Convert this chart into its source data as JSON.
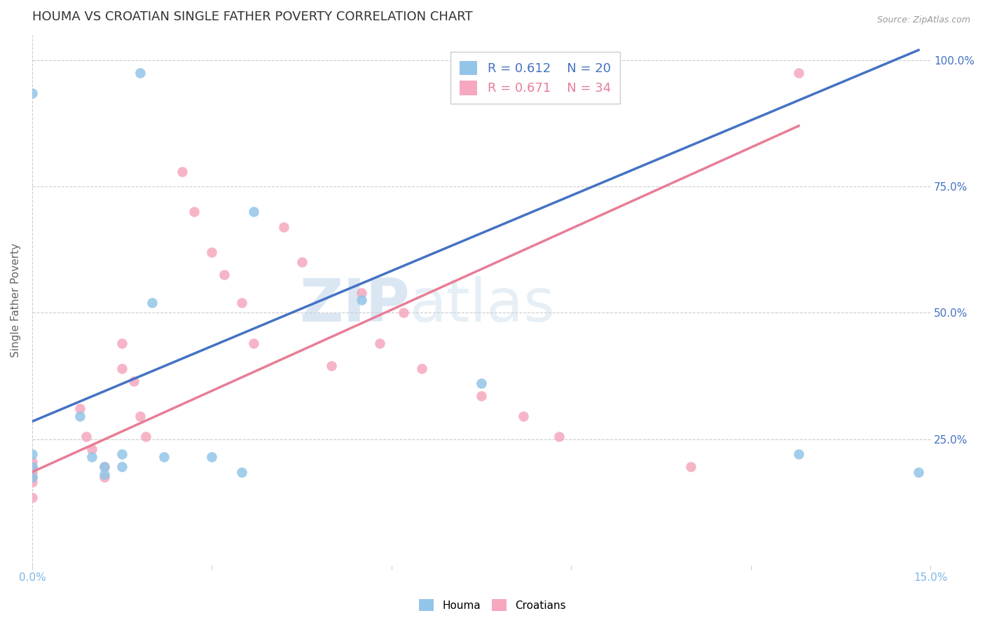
{
  "title": "HOUMA VS CROATIAN SINGLE FATHER POVERTY CORRELATION CHART",
  "source": "Source: ZipAtlas.com",
  "xlabel": "",
  "ylabel": "Single Father Poverty",
  "xlim": [
    0.0,
    0.15
  ],
  "ylim": [
    0.0,
    1.05
  ],
  "houma_R": 0.612,
  "houma_N": 20,
  "croatian_R": 0.671,
  "croatian_N": 34,
  "houma_color": "#92C5E8",
  "croatian_color": "#F5A8BE",
  "houma_line_color": "#4472C4",
  "croatian_line_color": "#E87D96",
  "grid_color": "#CCCCCC",
  "watermark_zip": "ZIP",
  "watermark_atlas": "atlas",
  "houma_x": [
    0.018,
    0.0,
    0.0,
    0.0,
    0.0,
    0.008,
    0.01,
    0.012,
    0.012,
    0.015,
    0.015,
    0.02,
    0.022,
    0.03,
    0.035,
    0.037,
    0.055,
    0.075,
    0.128,
    0.148
  ],
  "houma_y": [
    0.975,
    0.935,
    0.22,
    0.195,
    0.175,
    0.295,
    0.215,
    0.195,
    0.18,
    0.22,
    0.195,
    0.52,
    0.215,
    0.215,
    0.185,
    0.7,
    0.525,
    0.36,
    0.22,
    0.185
  ],
  "croatian_x": [
    0.0,
    0.0,
    0.0,
    0.0,
    0.0,
    0.0,
    0.008,
    0.009,
    0.01,
    0.012,
    0.012,
    0.015,
    0.015,
    0.017,
    0.018,
    0.019,
    0.025,
    0.027,
    0.03,
    0.032,
    0.035,
    0.037,
    0.042,
    0.045,
    0.05,
    0.055,
    0.058,
    0.062,
    0.065,
    0.075,
    0.082,
    0.088,
    0.11,
    0.128
  ],
  "croatian_y": [
    0.205,
    0.195,
    0.185,
    0.175,
    0.165,
    0.135,
    0.31,
    0.255,
    0.23,
    0.195,
    0.175,
    0.44,
    0.39,
    0.365,
    0.295,
    0.255,
    0.78,
    0.7,
    0.62,
    0.575,
    0.52,
    0.44,
    0.67,
    0.6,
    0.395,
    0.54,
    0.44,
    0.5,
    0.39,
    0.335,
    0.295,
    0.255,
    0.195,
    0.975
  ],
  "houma_trendline_x": [
    0.0,
    0.148
  ],
  "houma_trendline_y": [
    0.285,
    1.02
  ],
  "croatian_trendline_x": [
    0.0,
    0.128
  ],
  "croatian_trendline_y": [
    0.185,
    0.87
  ],
  "bg_color": "#FFFFFF",
  "title_color": "#333333",
  "axis_label_color": "#666666",
  "tick_color": "#7EB6E8",
  "right_tick_color": "#4472C4"
}
